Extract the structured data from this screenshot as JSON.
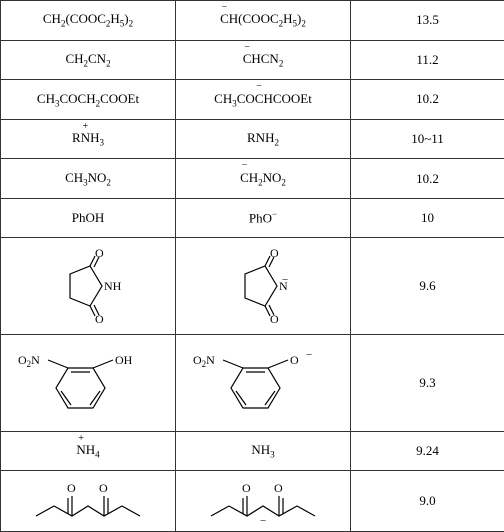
{
  "rows": [
    {
      "acid": "CH<span class=\"sub\">2</span>(COOC<span class=\"sub\">2</span>H<span class=\"sub\">5</span>)<span class=\"sub\">2</span>",
      "base": "<span class=\"overminus\">C</span>H(COOC<span class=\"sub\">2</span>H<span class=\"sub\">5</span>)<span class=\"sub\">2</span>",
      "pka": "13.5",
      "height": "short"
    },
    {
      "acid": "CH<span class=\"sub\">2</span>CN<span class=\"sub\">2</span>",
      "base": "<span class=\"overminus\">C</span>HCN<span class=\"sub\">2</span>",
      "pka": "11.2",
      "height": "short"
    },
    {
      "acid": "CH<span class=\"sub\">3</span>COCH<span class=\"sub\">2</span>COOEt",
      "base": "CH<span class=\"sub\">3</span>CO<span class=\"overminus\">C</span>HCOOEt",
      "pka": "10.2",
      "height": "short"
    },
    {
      "acid": "R<span class=\"overplus\">N</span>H<span class=\"sub\">3</span>",
      "base": "RNH<span class=\"sub\">2</span>",
      "pka": "10~11",
      "height": "short"
    },
    {
      "acid": "CH<span class=\"sub\">3</span>NO<span class=\"sub\">2</span>",
      "base": "<span class=\"overminus\">C</span>H<span class=\"sub\">2</span>NO<span class=\"sub\">2</span>",
      "pka": "10.2",
      "height": "short"
    },
    {
      "acid": "PhOH",
      "base": "PhO<span class=\"sup\">−</span>",
      "pka": "10",
      "height": "short"
    },
    {
      "acid_svg": "succinimide",
      "base_svg": "succinimide-anion",
      "pka": "9.6",
      "height": "tall"
    },
    {
      "acid_svg": "nitrophenol",
      "base_svg": "nitrophenolate",
      "pka": "9.3",
      "height": "tall"
    },
    {
      "acid": "<span class=\"overplus\">N</span>H<span class=\"sub\">4</span>",
      "base": "NH<span class=\"sub\">3</span>",
      "pka": "9.24",
      "height": "short"
    },
    {
      "acid_svg": "pentanedione",
      "base_svg": "pentanedione-anion",
      "pka": "9.0",
      "height": "short2"
    }
  ],
  "svgs": {
    "succinimide": {
      "label": "NH",
      "minus": false
    },
    "succinimide-anion": {
      "label": "N",
      "minus": true
    },
    "nitrophenol": {
      "o_label": "OH",
      "minus": false
    },
    "nitrophenolate": {
      "o_label": "O",
      "minus": true
    },
    "pentanedione": {
      "minus": false
    },
    "pentanedione-anion": {
      "minus": true
    }
  },
  "colors": {
    "line": "#000000",
    "text": "#000000",
    "bg": "#ffffff"
  }
}
